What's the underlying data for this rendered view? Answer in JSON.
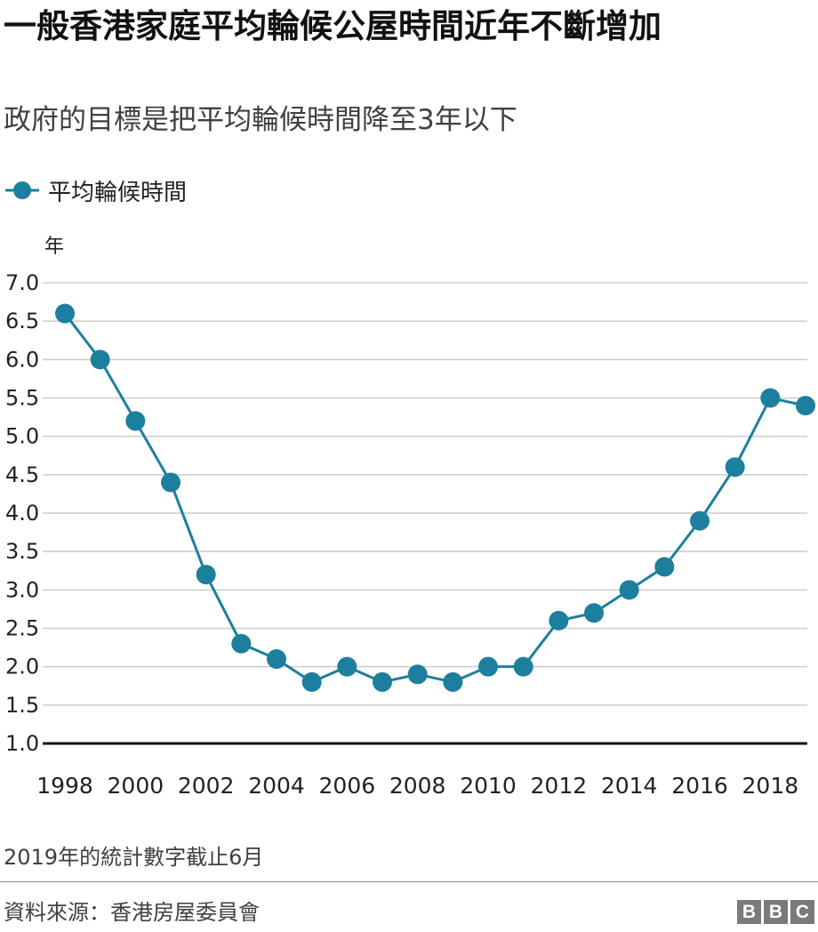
{
  "header": {
    "title": "一般香港家庭平均輪候公屋時間近年不斷增加",
    "subtitle": "政府的目標是把平均輪候時間降至3年以下"
  },
  "legend": {
    "series_label": "平均輪候時間"
  },
  "colors": {
    "series": "#1d7f9e",
    "grid": "#cccccc",
    "axis": "#111111"
  },
  "chart_data": {
    "type": "line",
    "ylabel": "年",
    "ylim": [
      1.0,
      7.0
    ],
    "y_ticks": [
      "1.0",
      "1.5",
      "2.0",
      "2.5",
      "3.0",
      "3.5",
      "4.0",
      "4.5",
      "5.0",
      "5.5",
      "6.0",
      "6.5",
      "7.0"
    ],
    "x_tick_labels": [
      "1998",
      "2000",
      "2002",
      "2004",
      "2006",
      "2008",
      "2010",
      "2012",
      "2014",
      "2016",
      "2018"
    ],
    "grid": true,
    "legend_position": "top-left",
    "series": [
      {
        "name": "平均輪候時間",
        "x": [
          1998,
          1999,
          2000,
          2001,
          2002,
          2003,
          2004,
          2005,
          2006,
          2007,
          2008,
          2009,
          2010,
          2011,
          2012,
          2013,
          2014,
          2015,
          2016,
          2017,
          2018,
          2019
        ],
        "values": [
          6.6,
          6.0,
          5.2,
          4.4,
          3.2,
          2.3,
          2.1,
          1.8,
          2.0,
          1.8,
          1.9,
          1.8,
          2.0,
          2.0,
          2.6,
          2.7,
          3.0,
          3.3,
          3.9,
          4.6,
          5.5,
          5.4
        ]
      }
    ]
  },
  "footer": {
    "note": "2019年的統計數字截止6月",
    "source": "資料來源：香港房屋委員會",
    "logo_letters": [
      "B",
      "B",
      "C"
    ]
  }
}
